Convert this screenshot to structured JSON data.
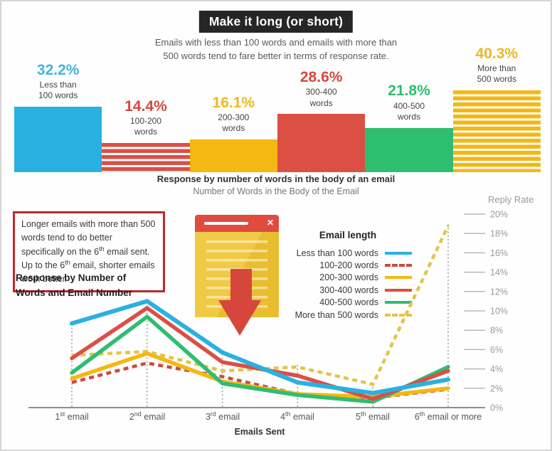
{
  "header": {
    "badge": "Make it long (or short)",
    "subtitle_line1": "Emails with less than 100 words and emails with more than",
    "subtitle_line2": "500 words tend to fare better in terms of response rate."
  },
  "bar_chart": {
    "type": "bar",
    "caption": "Response by number of words in the body of an email",
    "subcaption": "Number of Words in the Body of the Email",
    "unit": "response rate %",
    "bars": [
      {
        "pct": "32.2%",
        "value": 32.2,
        "label_line1": "Less than",
        "label_line2": "100 words",
        "color": "#29B1E1",
        "pct_color": "#45B5DC",
        "striped": false
      },
      {
        "pct": "14.4%",
        "value": 14.4,
        "label_line1": "100-200",
        "label_line2": "words",
        "color": "#DC4F43",
        "pct_color": "#D8473D",
        "striped": true
      },
      {
        "pct": "16.1%",
        "value": 16.1,
        "label_line1": "200-300",
        "label_line2": "words",
        "color": "#F5B712",
        "pct_color": "#EFB722",
        "striped": false
      },
      {
        "pct": "28.6%",
        "value": 28.6,
        "label_line1": "300-400",
        "label_line2": "words",
        "color": "#DC4F43",
        "pct_color": "#D8473D",
        "striped": false
      },
      {
        "pct": "21.8%",
        "value": 21.8,
        "label_line1": "400-500",
        "label_line2": "words",
        "color": "#2EBE71",
        "pct_color": "#2FBE71",
        "striped": false
      },
      {
        "pct": "40.3%",
        "value": 40.3,
        "label_line1": "More than",
        "label_line2": "500 words",
        "color": "#F5B712",
        "pct_color": "#EFB722",
        "striped": true
      }
    ]
  },
  "note": {
    "border_color": "#C1272D",
    "parts": [
      "Longer emails with more than 500 words tend to do better specifically on the 6",
      "th",
      " email sent. Up to the 6",
      "th",
      " email, shorter emails work better."
    ]
  },
  "line_section": {
    "heading_line1": "Response by Number of",
    "heading_line2": "Words and Email Number",
    "legend_title": "Email length",
    "ylabel": "Reply Rate",
    "xlabel": "Emails Sent"
  },
  "icon": {
    "name": "email-document-down-arrow",
    "close_glyph": "✕",
    "titlebar_color": "#E04B40",
    "body_color": "#F0CA45",
    "arrow_color": "#D7463B"
  },
  "chart_data": {
    "type": "line",
    "title": "Response by Number of Words and Email Number",
    "xlabel": "Emails Sent",
    "ylabel": "Reply Rate",
    "ylim": [
      0,
      20
    ],
    "y_ticks": [
      "0%",
      "2%",
      "4%",
      "6%",
      "8%",
      "10%",
      "12%",
      "14%",
      "16%",
      "18%",
      "20%"
    ],
    "grid": "tick dashes on right axis only",
    "legend_position": "top-center",
    "x_categories": [
      "1st email",
      "2nd email",
      "3rd email",
      "4th email",
      "5th email",
      "6th email or more"
    ],
    "x_label_parts": [
      {
        "num": "1",
        "ord": "st",
        "rest": " email"
      },
      {
        "num": "2",
        "ord": "nd",
        "rest": " email"
      },
      {
        "num": "3",
        "ord": "rd",
        "rest": " email"
      },
      {
        "num": "4",
        "ord": "th",
        "rest": " email"
      },
      {
        "num": "5",
        "ord": "th",
        "rest": " email"
      },
      {
        "num": "6",
        "ord": "th",
        "rest": " email or more"
      }
    ],
    "series": [
      {
        "name": "Less than 100 words",
        "color": "#29B1E1",
        "dash": false,
        "values": [
          8.7,
          11.0,
          5.7,
          2.6,
          1.5,
          2.9
        ]
      },
      {
        "name": "100-200 words",
        "color": "#CC4A41",
        "dash": true,
        "values": [
          2.6,
          4.6,
          3.2,
          1.4,
          1.0,
          1.9
        ]
      },
      {
        "name": "200-300 words",
        "color": "#F5B712",
        "dash": false,
        "values": [
          3.0,
          5.6,
          2.7,
          1.4,
          1.1,
          2.0
        ]
      },
      {
        "name": "300-400 words",
        "color": "#DC4F43",
        "dash": false,
        "values": [
          5.1,
          10.3,
          4.7,
          3.3,
          0.9,
          3.8
        ]
      },
      {
        "name": "400-500 words",
        "color": "#2EBE71",
        "dash": false,
        "values": [
          3.6,
          9.4,
          2.5,
          1.3,
          0.6,
          4.2
        ]
      },
      {
        "name": "More than 500 words",
        "color": "#E2C44A",
        "dash": true,
        "values": [
          5.4,
          5.8,
          3.8,
          4.2,
          2.4,
          18.8
        ]
      }
    ]
  }
}
